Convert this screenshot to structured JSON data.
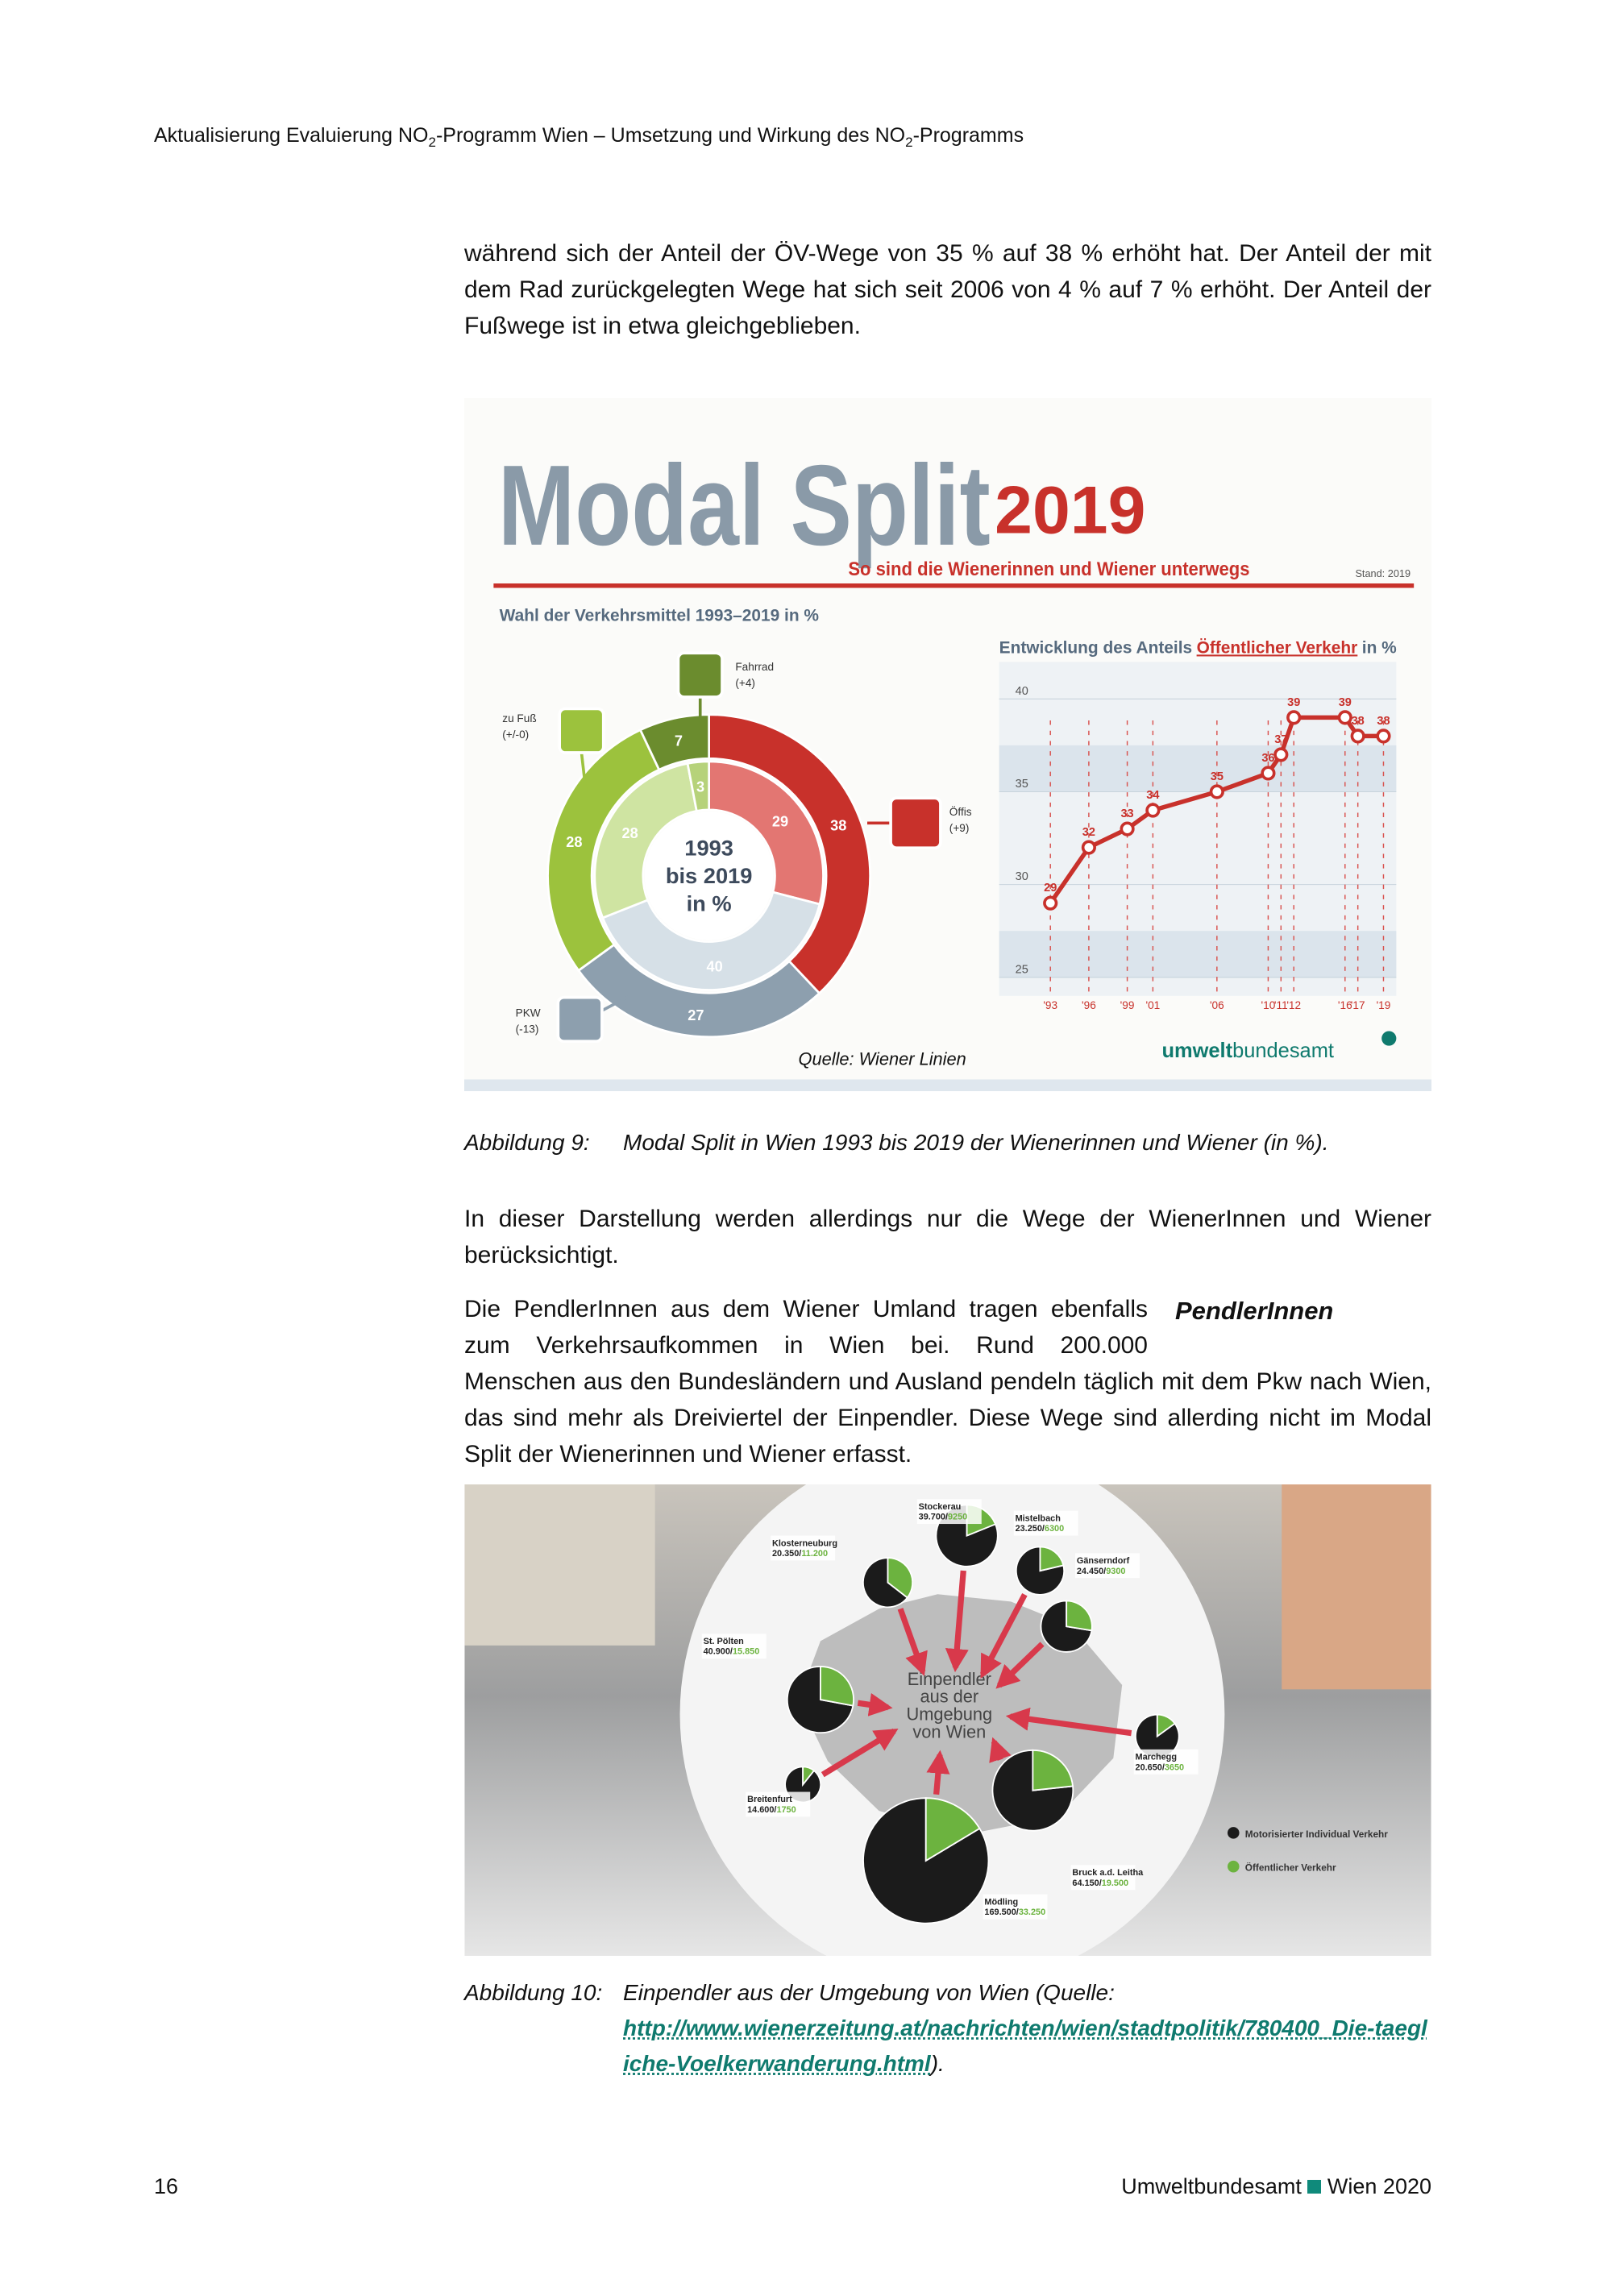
{
  "header": {
    "title_parts": [
      "Aktualisierung Evaluierung NO",
      "2",
      "-Programm Wien – Umsetzung und Wirkung des NO",
      "2",
      "-Programms"
    ]
  },
  "paragraphs": [
    "während sich der Anteil der ÖV-Wege von 35 % auf 38 % erhöht hat. Der Anteil der mit dem Rad zurückgelegten Wege hat sich seit 2006 von 4 % auf 7 % erhöht. Der Anteil der Fußwege ist in etwa gleichgeblieben.",
    "In dieser Darstellung werden allerdings nur die Wege der WienerInnen und Wiener berücksichtigt.",
    "Die PendlerInnen aus dem Wiener Umland tragen ebenfalls zum Verkehrsaufkommen in Wien bei. Rund 200.000 Menschen aus den Bundesländern und Ausland pendeln täglich mit dem Pkw nach Wien, das sind mehr als Dreiviertel der Einpendler. Diese Wege sind allerding nicht im Modal Split der Wienerinnen und Wiener erfasst."
  ],
  "margin_note": "PendlerInnen",
  "figure_1": {
    "title": "Modal Split",
    "title_year": "2019",
    "subtitle": "So sind die Wienerinnen und Wiener unterwegs",
    "stand": "Stand: 2019",
    "source": "Quelle: Wiener Linien",
    "logo_parts": [
      "umwelt",
      "bundesamt"
    ],
    "caption_label": "Abbildung 9:",
    "caption": "Modal Split in Wien 1993 bis 2019 der Wienerinnen und Wiener (in %)."
  },
  "figure_2": {
    "center_text": [
      "Einpendler",
      "aus der",
      "Umgebung",
      "von Wien"
    ],
    "caption_label": "Abbildung 10:",
    "caption": "Einpendler aus der Umgebung von Wien (Quelle:",
    "link": "http://www.wienerzeitung.at/nachrichten/wien/stadtpolitik/780400_Die-taegliche-Voelkerwanderung.html",
    "caption_end": ")."
  },
  "footer": {
    "page": "16",
    "publisher": "Umweltbundesamt",
    "place_year": "Wien 2020"
  },
  "chart_data": [
    {
      "type": "pie",
      "title": "Wahl der Verkehrsmittel 1993–2019 in %",
      "center_label": [
        "1993",
        "bis 2019",
        "in %"
      ],
      "categories": [
        "Öffis",
        "PKW",
        "zu Fuß",
        "Fahrrad"
      ],
      "category_changes": [
        "(+9)",
        "(-13)",
        "(+/-0)",
        "(+4)"
      ],
      "series": [
        {
          "values": [
            38,
            27,
            28,
            7
          ],
          "colors": [
            "#c8312b",
            "#8d9fae",
            "#9cc23d",
            "#6b8c2e"
          ]
        },
        {
          "values": [
            29,
            40,
            28,
            3
          ],
          "colors": [
            "#e37672",
            "#d6e0e7",
            "#cfe4a2",
            "#b6d27a"
          ]
        }
      ]
    },
    {
      "type": "line",
      "title_parts": [
        "Entwicklung des Anteils",
        "Öffentlicher Verkehr",
        "in %"
      ],
      "x": [
        1993,
        1996,
        1999,
        2001,
        2006,
        2010,
        2011,
        2012,
        2016,
        2017,
        2019
      ],
      "xticks": [
        {
          "value": 1993,
          "label": "'93"
        },
        {
          "value": 1996,
          "label": "'96"
        },
        {
          "value": 1999,
          "label": "'99"
        },
        {
          "value": 2001,
          "label": "'01"
        },
        {
          "value": 2006,
          "label": "'06"
        },
        {
          "value": 2010,
          "label": "'10"
        },
        {
          "value": 2011,
          "label": "'11"
        },
        {
          "value": 2012,
          "label": "'12"
        },
        {
          "value": 2016,
          "label": "'16"
        },
        {
          "value": 2017,
          "label": "'17"
        },
        {
          "value": 2019,
          "label": "'19"
        }
      ],
      "series": [
        {
          "color": "#c8312b",
          "values": [
            29,
            32,
            33,
            34,
            35,
            36,
            37,
            39,
            39,
            38,
            38
          ]
        }
      ],
      "xlim": [
        1989,
        2020
      ],
      "ylim": [
        24,
        42
      ],
      "yticks": [
        25,
        30,
        35,
        40
      ]
    },
    {
      "type": "pie",
      "legend": [
        "Motorisierter Individual Verkehr",
        "Öffentlicher Verkehr"
      ],
      "colors": [
        "#1b1b1b",
        "#6cb33f"
      ],
      "places": [
        {
          "name": "Klosterneuburg",
          "values": [
            20350,
            11200
          ],
          "value_labels": [
            "20.350",
            "11.200"
          ]
        },
        {
          "name": "Stockerau",
          "values": [
            39700,
            9250
          ],
          "value_labels": [
            "39.700",
            "9250"
          ]
        },
        {
          "name": "Mistelbach",
          "values": [
            23250,
            6300
          ],
          "value_labels": [
            "23.250",
            "6300"
          ]
        },
        {
          "name": "Gänserndorf",
          "values": [
            24450,
            9300
          ],
          "value_labels": [
            "24.450",
            "9300"
          ]
        },
        {
          "name": "St. Pölten",
          "values": [
            40900,
            15850
          ],
          "value_labels": [
            "40.900",
            "15.850"
          ]
        },
        {
          "name": "Marchegg",
          "values": [
            20650,
            3650
          ],
          "value_labels": [
            "20.650",
            "3650"
          ]
        },
        {
          "name": "Breitenfurt",
          "values": [
            14600,
            1750
          ],
          "value_labels": [
            "14.600",
            "1750"
          ]
        },
        {
          "name": "Mödling",
          "values": [
            169500,
            33250
          ],
          "value_labels": [
            "169.500",
            "33.250"
          ]
        },
        {
          "name": "Bruck a.d. Leitha",
          "values": [
            64150,
            19500
          ],
          "value_labels": [
            "64.150",
            "19.500"
          ]
        }
      ]
    }
  ]
}
